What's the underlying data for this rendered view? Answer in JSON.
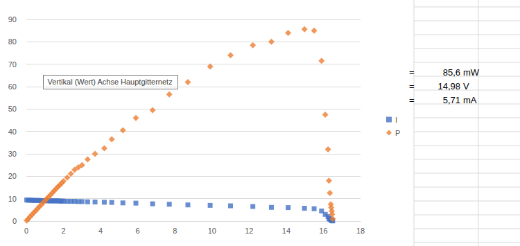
{
  "chart_data": {
    "type": "scatter",
    "x": [
      0.02,
      0.1,
      0.2,
      0.3,
      0.4,
      0.5,
      0.6,
      0.7,
      0.8,
      0.9,
      1.0,
      1.1,
      1.2,
      1.3,
      1.4,
      1.5,
      1.6,
      1.7,
      1.8,
      1.9,
      2.0,
      2.2,
      2.4,
      2.6,
      2.8,
      3.0,
      3.3,
      3.7,
      4.2,
      4.6,
      5.2,
      5.9,
      6.8,
      7.7,
      8.7,
      9.9,
      11.0,
      12.2,
      13.2,
      14.1,
      14.98,
      15.5,
      15.9,
      16.1,
      16.25,
      16.3,
      16.35,
      16.4,
      16.42,
      16.45,
      16.47,
      16.5
    ],
    "series": [
      {
        "name": "I",
        "color": "#4472c4",
        "marker": "square",
        "values": [
          9.4,
          9.3,
          9.3,
          9.3,
          9.2,
          9.2,
          9.2,
          9.2,
          9.1,
          9.1,
          9.1,
          9.1,
          9.0,
          9.0,
          9.0,
          9.0,
          9.0,
          9.0,
          8.9,
          8.9,
          8.9,
          8.8,
          8.8,
          8.8,
          8.7,
          8.7,
          8.6,
          8.5,
          8.4,
          8.3,
          8.1,
          8.0,
          7.7,
          7.5,
          7.2,
          7.0,
          6.8,
          6.5,
          6.1,
          6.0,
          5.71,
          5.5,
          4.5,
          3.0,
          2.0,
          1.1,
          0.8,
          0.5,
          0.4,
          0.3,
          0.2,
          0.06
        ]
      },
      {
        "name": "P",
        "color": "#ed7d31",
        "marker": "diamond",
        "values": [
          0.2,
          0.9,
          1.9,
          2.8,
          3.7,
          4.6,
          5.5,
          6.4,
          7.3,
          8.2,
          9.1,
          10.0,
          10.8,
          11.7,
          12.6,
          13.5,
          14.4,
          15.3,
          16.0,
          16.9,
          17.8,
          19.4,
          21.1,
          22.9,
          24.0,
          25.0,
          27.5,
          30.0,
          32.5,
          36.5,
          40.5,
          46.0,
          49.5,
          56.5,
          62.0,
          69.0,
          74.0,
          78.5,
          80.0,
          84.0,
          85.6,
          85.0,
          71.5,
          47.5,
          32.0,
          18.0,
          12.5,
          7.5,
          6.0,
          4.5,
          3.0,
          1.0
        ]
      }
    ],
    "xlim": [
      0,
      18
    ],
    "xticks": [
      0,
      2,
      4,
      6,
      8,
      10,
      12,
      14,
      16,
      18
    ],
    "ylim": [
      0,
      90
    ],
    "yticks": [
      0,
      10,
      20,
      30,
      40,
      50,
      60,
      70,
      80,
      90
    ],
    "grid": true,
    "legend": "right",
    "annotations": [
      "Vertikal (Wert) Achse Hauptgitternetz"
    ],
    "cells": [
      [
        "=",
        "85,6",
        "mW"
      ],
      [
        "=",
        "14,98",
        "V"
      ],
      [
        "=",
        "5,71",
        "mA"
      ]
    ]
  }
}
